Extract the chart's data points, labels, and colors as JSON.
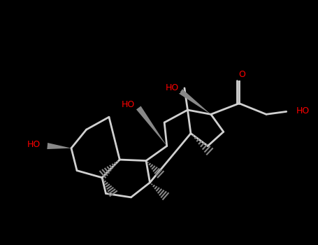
{
  "background": "#000000",
  "bond_color": "#d0d0d0",
  "wedge_color": "#888888",
  "red": "#ff0000",
  "lw": 2.0,
  "figsize": [
    4.55,
    3.5
  ],
  "dpi": 100,
  "xlim": [
    -0.5,
    9.5
  ],
  "ylim": [
    -0.5,
    6.5
  ]
}
